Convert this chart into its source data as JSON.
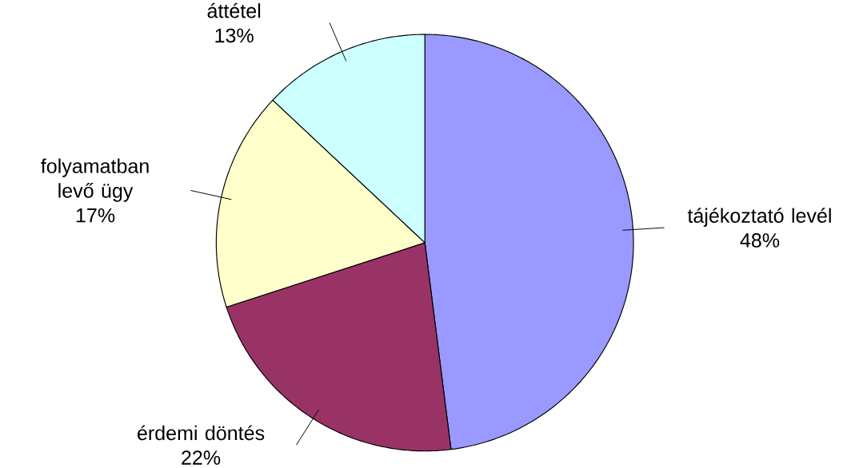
{
  "chart_data": {
    "type": "pie",
    "categories": [
      "tájékoztató levél",
      "érdemi döntés",
      "folyamatban levő ügy",
      "áttétel"
    ],
    "values": [
      48,
      22,
      17,
      13
    ],
    "value_labels": [
      "48%",
      "22%",
      "17%",
      "13%"
    ],
    "colors": [
      "#9999ff",
      "#993366",
      "#ffffcc",
      "#ccffff"
    ]
  }
}
